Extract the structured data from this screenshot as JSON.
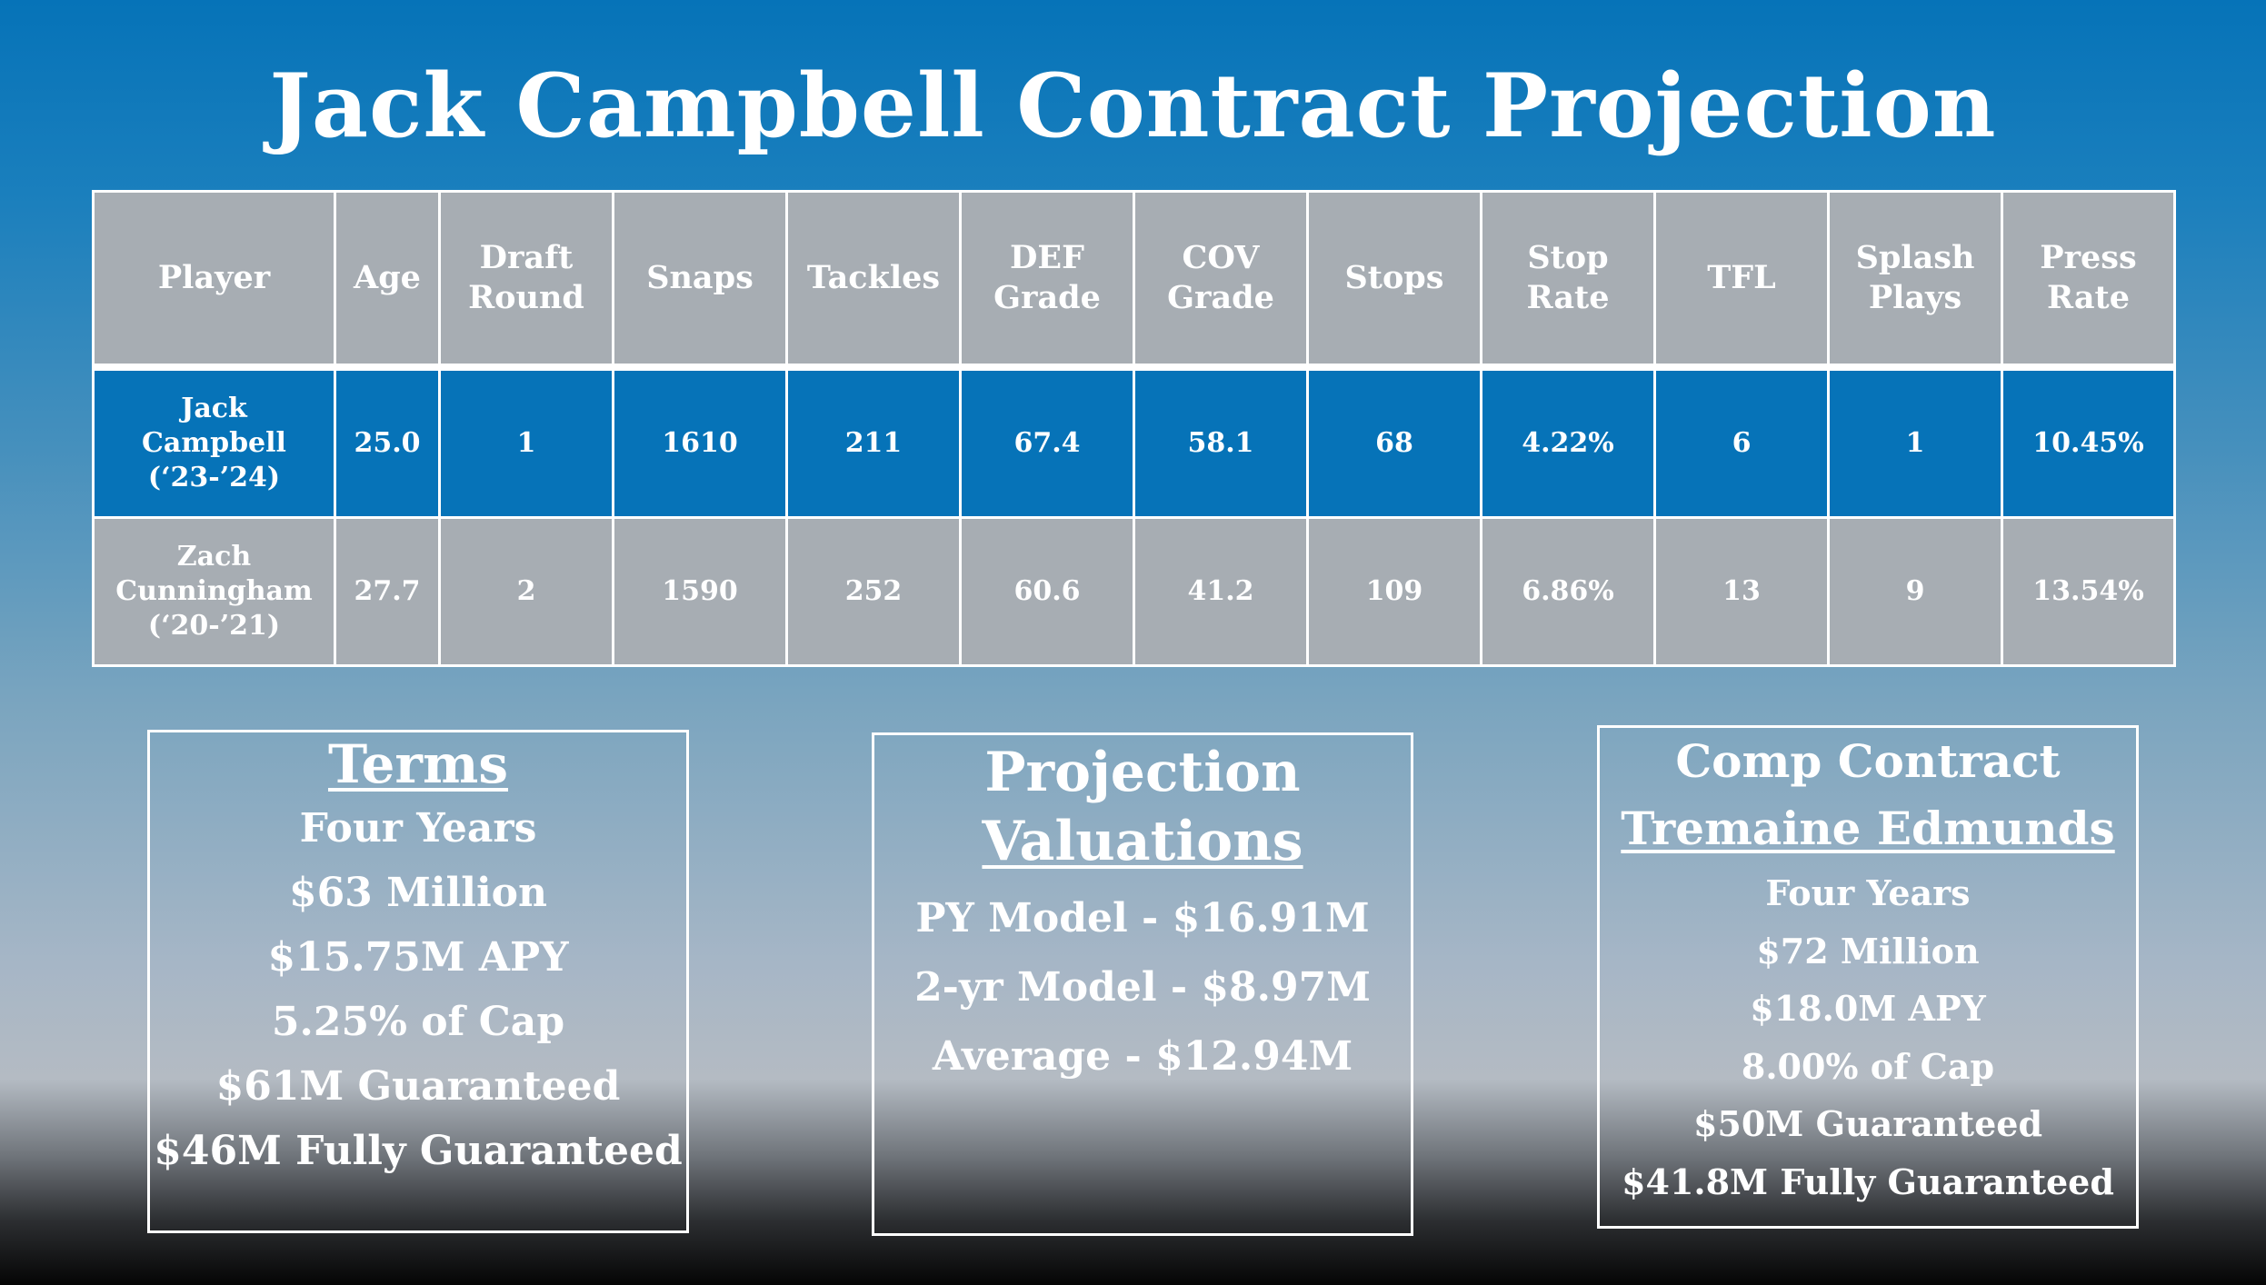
{
  "title": "Jack Campbell Contract Projection",
  "table": {
    "headers": [
      "Player",
      "Age",
      "Draft Round",
      "Snaps",
      "Tackles",
      "DEF Grade",
      "COV Grade",
      "Stops",
      "Stop Rate",
      "TFL",
      "Splash Plays",
      "Press Rate"
    ],
    "rows": [
      {
        "player_lines": [
          "Jack",
          "Campbell",
          "(‘23-’24)"
        ],
        "age": "25.0",
        "draft_round": "1",
        "snaps": "1610",
        "tackles": "211",
        "def_grade": "67.4",
        "cov_grade": "58.1",
        "stops": "68",
        "stop_rate": "4.22%",
        "tfl": "6",
        "splash_plays": "1",
        "press_rate": "10.45%"
      },
      {
        "player_lines": [
          "Zach",
          "Cunningham",
          "(‘20-’21)"
        ],
        "age": "27.7",
        "draft_round": "2",
        "snaps": "1590",
        "tackles": "252",
        "def_grade": "60.6",
        "cov_grade": "41.2",
        "stops": "109",
        "stop_rate": "6.86%",
        "tfl": "13",
        "splash_plays": "9",
        "press_rate": "13.54%"
      }
    ]
  },
  "terms": {
    "heading": "Terms",
    "items": [
      "Four Years",
      "$63 Million",
      "$15.75M APY",
      "5.25% of Cap",
      "$61M Guaranteed",
      "$46M Fully Guaranteed"
    ]
  },
  "projection": {
    "heading_line1": "Projection",
    "heading_line2": "Valuations",
    "items": [
      "PY Model - $16.91M",
      "2-yr Model - $8.97M",
      "Average - $12.94M"
    ]
  },
  "comp": {
    "heading": "Comp Contract",
    "player": "Tremaine Edmunds",
    "items": [
      "Four Years",
      "$72 Million",
      "$18.0M APY",
      "8.00% of Cap",
      "$50M Guaranteed",
      "$41.8M Fully Guaranteed"
    ]
  },
  "colors": {
    "blue": "#0673b8",
    "gray": "#a7adb3",
    "text": "#ffffff"
  }
}
